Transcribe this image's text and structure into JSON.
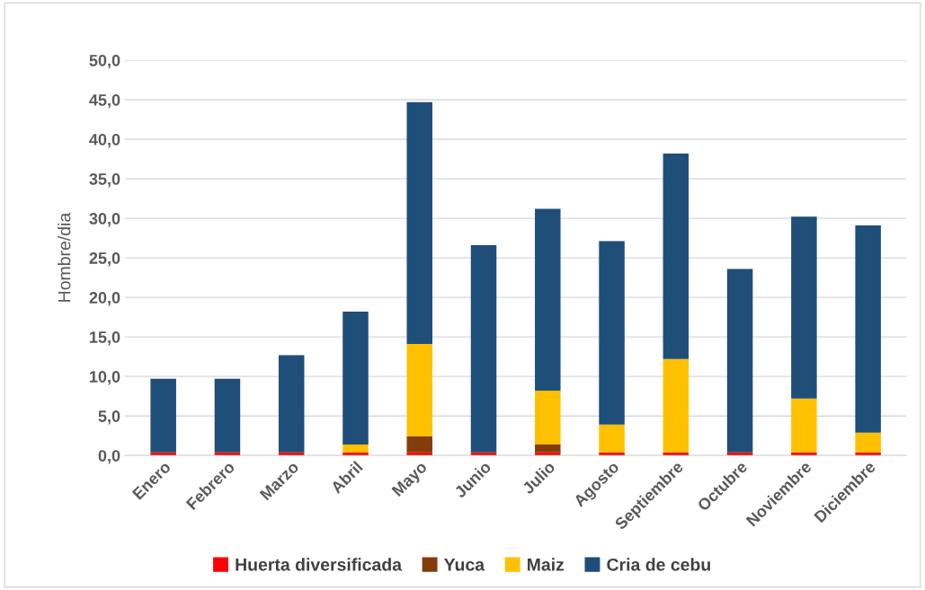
{
  "chart_data": {
    "type": "bar",
    "stacked": true,
    "ylabel": "Hombre/dia",
    "categories": [
      "Enero",
      "Febrero",
      "Marzo",
      "Abril",
      "Mayo",
      "Junio",
      "Julio",
      "Agosto",
      "Septiembre",
      "Octubre",
      "Noviembre",
      "Diciembre"
    ],
    "series": [
      {
        "name": "Huerta diversificada",
        "color": "#ff0000",
        "values": [
          0.4,
          0.4,
          0.4,
          0.4,
          0.4,
          0.4,
          0.4,
          0.4,
          0.4,
          0.4,
          0.4,
          0.4
        ]
      },
      {
        "name": "Yuca",
        "color": "#843c0c",
        "values": [
          0,
          0,
          0,
          0,
          2.0,
          0,
          1.0,
          0,
          0,
          0,
          0,
          0
        ]
      },
      {
        "name": "Maiz",
        "color": "#ffc000",
        "values": [
          0,
          0,
          0,
          1.0,
          11.7,
          0,
          6.8,
          3.5,
          11.8,
          0,
          6.8,
          2.5
        ]
      },
      {
        "name": "Cria de cebu",
        "color": "#1f4e79",
        "values": [
          9.3,
          9.3,
          12.3,
          16.8,
          30.6,
          26.2,
          23.0,
          23.2,
          26.0,
          23.2,
          23.0,
          26.2
        ]
      }
    ],
    "ylim": [
      0,
      50
    ],
    "yticks": [
      {
        "value": 0,
        "label": "0,0"
      },
      {
        "value": 5,
        "label": "5,0"
      },
      {
        "value": 10,
        "label": "10,0"
      },
      {
        "value": 15,
        "label": "15,0"
      },
      {
        "value": 20,
        "label": "20,0"
      },
      {
        "value": 25,
        "label": "25,0"
      },
      {
        "value": 30,
        "label": "30,0"
      },
      {
        "value": 35,
        "label": "35,0"
      },
      {
        "value": 40,
        "label": "40,0"
      },
      {
        "value": 45,
        "label": "45,0"
      },
      {
        "value": 50,
        "label": "50,0"
      }
    ],
    "grid": "y",
    "legend": "bottom"
  }
}
